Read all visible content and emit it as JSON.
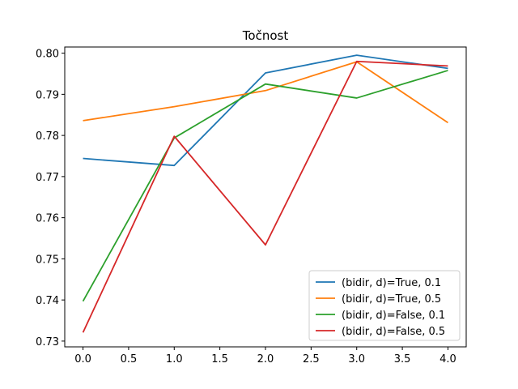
{
  "chart_data": {
    "type": "line",
    "title": "Točnost",
    "xlabel": "",
    "ylabel": "",
    "xlim": [
      -0.2,
      4.2
    ],
    "ylim": [
      0.7286,
      0.8015
    ],
    "xticks": [
      0.0,
      0.5,
      1.0,
      1.5,
      2.0,
      2.5,
      3.0,
      3.5,
      4.0
    ],
    "xtick_labels": [
      "0.0",
      "0.5",
      "1.0",
      "1.5",
      "2.0",
      "2.5",
      "3.0",
      "3.5",
      "4.0"
    ],
    "yticks": [
      0.73,
      0.74,
      0.75,
      0.76,
      0.77,
      0.78,
      0.79,
      0.8
    ],
    "ytick_labels": [
      "0.73",
      "0.74",
      "0.75",
      "0.76",
      "0.77",
      "0.78",
      "0.79",
      "0.80"
    ],
    "grid": false,
    "legend_position": "lower-right",
    "x": [
      0,
      1,
      2,
      3,
      4
    ],
    "series": [
      {
        "name": "(bidir, d)=True, 0.1",
        "color": "#1f77b4",
        "values": [
          0.7744,
          0.7727,
          0.7952,
          0.7995,
          0.7963
        ]
      },
      {
        "name": "(bidir, d)=True, 0.5",
        "color": "#ff7f0e",
        "values": [
          0.7836,
          0.787,
          0.7909,
          0.7979,
          0.7831
        ]
      },
      {
        "name": "(bidir, d)=False, 0.1",
        "color": "#2ca02c",
        "values": [
          0.7397,
          0.7794,
          0.7925,
          0.7891,
          0.7958
        ]
      },
      {
        "name": "(bidir, d)=False, 0.5",
        "color": "#d62728",
        "values": [
          0.7321,
          0.7798,
          0.7534,
          0.798,
          0.7969
        ]
      }
    ]
  }
}
